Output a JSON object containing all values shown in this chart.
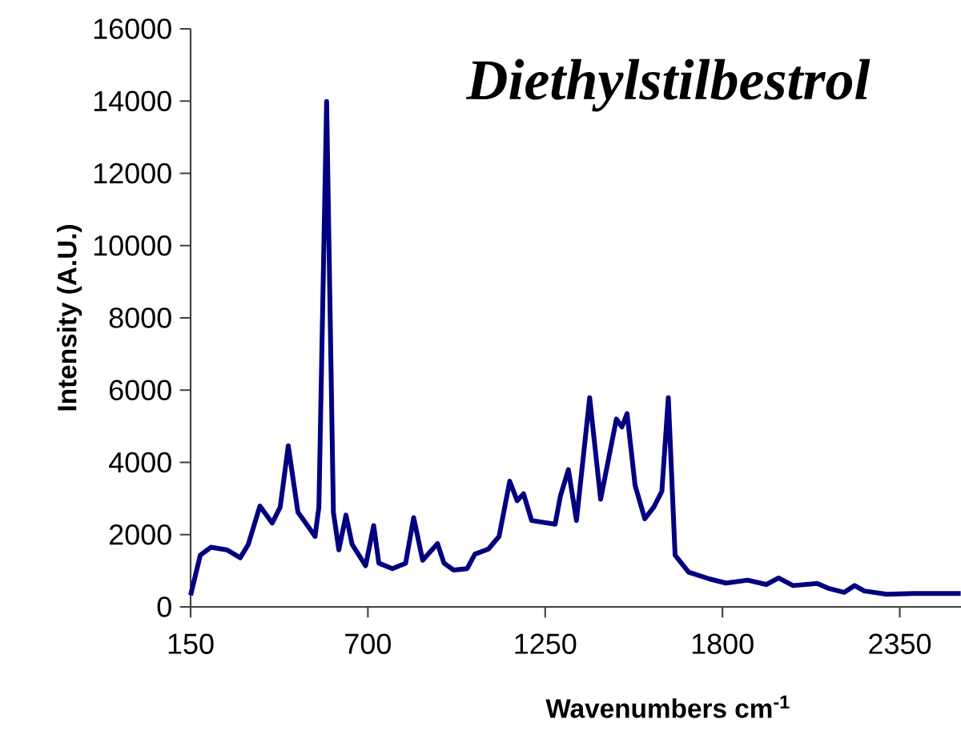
{
  "chart_data": {
    "type": "line",
    "title": "Diethylstilbestrol",
    "xlabel": "Wavenumbers cm$^{-1}$",
    "ylabel": "Intensity (A.U.)",
    "xlim": [
      150,
      2540
    ],
    "xticks": [
      150,
      700,
      1250,
      1800,
      2350
    ],
    "ylim": [
      0,
      16000
    ],
    "yticks": [
      0,
      2000,
      4000,
      6000,
      8000,
      10000,
      12000,
      14000,
      16000
    ],
    "grid": false,
    "marker": "none",
    "line_style": "solid",
    "series": [
      {
        "color": "#000080",
        "x": [
          150,
          180,
          213,
          262,
          304,
          329,
          365,
          403,
          428,
          453,
          483,
          519,
          536,
          548,
          572,
          593,
          610,
          632,
          651,
          693,
          718,
          734,
          776,
          817,
          842,
          870,
          892,
          916,
          936,
          966,
          1008,
          1032,
          1074,
          1107,
          1140,
          1163,
          1183,
          1208,
          1281,
          1297,
          1322,
          1347,
          1388,
          1422,
          1471,
          1488,
          1504,
          1529,
          1559,
          1587,
          1612,
          1632,
          1653,
          1695,
          1761,
          1811,
          1878,
          1936,
          1974,
          2019,
          2094,
          2127,
          2177,
          2210,
          2240,
          2310,
          2393,
          2539
        ],
        "values": [
          320,
          1430,
          1650,
          1580,
          1360,
          1730,
          2790,
          2320,
          2760,
          4460,
          2620,
          2170,
          1950,
          2760,
          13990,
          2620,
          1580,
          2540,
          1730,
          1140,
          2250,
          1210,
          1060,
          1210,
          2470,
          1290,
          1510,
          1750,
          1210,
          1020,
          1060,
          1460,
          1600,
          1950,
          3480,
          2940,
          3130,
          2390,
          2290,
          3060,
          3800,
          2390,
          5790,
          2980,
          5200,
          4980,
          5350,
          3360,
          2440,
          2760,
          3200,
          5790,
          1430,
          960,
          770,
          660,
          740,
          620,
          800,
          590,
          650,
          520,
          400,
          590,
          440,
          350,
          370,
          370
        ]
      }
    ]
  }
}
